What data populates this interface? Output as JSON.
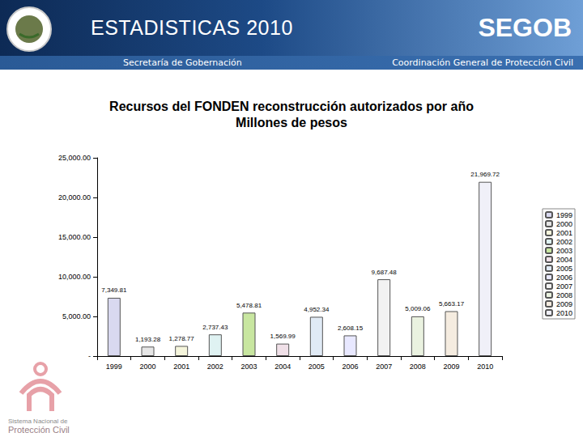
{
  "header": {
    "title": "ESTADISTICAS 2010",
    "organization": "SEGOB",
    "left_caption": "Secretaría de Gobernación",
    "right_caption": "Coordinación General de Protección Civil"
  },
  "footer": {
    "logo_lines": [
      "Sistema Nacional de",
      "Protección Civil"
    ]
  },
  "chart_data": {
    "type": "bar",
    "title": "Recursos del FONDEN reconstrucción autorizados por año",
    "subtitle": "Millones de pesos",
    "categories": [
      "1999",
      "2000",
      "2001",
      "2002",
      "2003",
      "2004",
      "2005",
      "2006",
      "2007",
      "2008",
      "2009",
      "2010"
    ],
    "values": [
      7349.81,
      1193.28,
      1278.77,
      2737.43,
      5478.81,
      1569.99,
      4952.34,
      2608.15,
      9687.48,
      5009.06,
      5663.17,
      21969.72
    ],
    "value_labels": [
      "7,349.81",
      "1,193.28",
      "1,278.77",
      "2,737.43",
      "5,478.81",
      "1,569.99",
      "4,952.34",
      "2,608.15",
      "9,687.48",
      "5,009.06",
      "5,663.17",
      "21,969.72"
    ],
    "colors": [
      "#d9d9f0",
      "#e6e6e6",
      "#f5f5dc",
      "#dff2f2",
      "#c8e6a0",
      "#f0e0e8",
      "#e0eaf5",
      "#e8e8ff",
      "#f2f2f2",
      "#eaf2e0",
      "#f5ece0",
      "#f0f0f8"
    ],
    "ylim": [
      0,
      25000
    ],
    "yticks": [
      {
        "value": 0,
        "label": "-"
      },
      {
        "value": 5000,
        "label": "5,000.00"
      },
      {
        "value": 10000,
        "label": "10,000.00"
      },
      {
        "value": 15000,
        "label": "15,000.00"
      },
      {
        "value": 20000,
        "label": "20,000.00"
      },
      {
        "value": 25000,
        "label": "25,000.00"
      }
    ],
    "grid": false,
    "legend": "right",
    "data_labels": true
  }
}
